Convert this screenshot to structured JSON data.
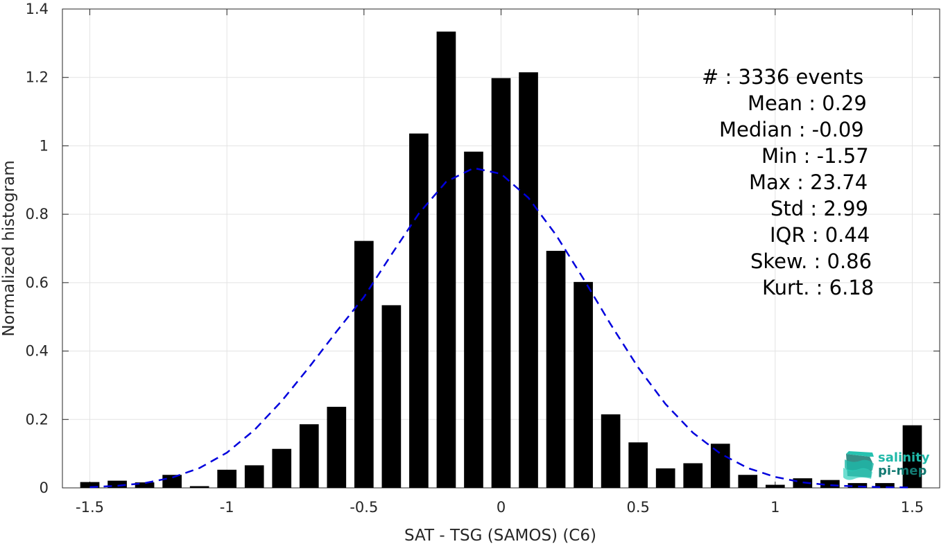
{
  "chart_data": {
    "type": "bar",
    "xlabel": "SAT - TSG (SAMOS) (C6)",
    "ylabel": "Normalized histogram",
    "xlim": [
      -1.6,
      1.6
    ],
    "ylim": [
      0,
      1.4
    ],
    "xticks": [
      -1.5,
      -1,
      -0.5,
      0,
      0.5,
      1,
      1.5
    ],
    "xtick_labels": [
      "-1.5",
      "-1",
      "-0.5",
      "0",
      "0.5",
      "1",
      "1.5"
    ],
    "yticks": [
      0,
      0.2,
      0.4,
      0.6,
      0.8,
      1,
      1.2,
      1.4
    ],
    "ytick_labels": [
      "0",
      "0.2",
      "0.4",
      "0.6",
      "0.8",
      "1",
      "1.2",
      "1.4"
    ],
    "grid": true,
    "bar_color": "#000000",
    "x": [
      -1.5,
      -1.4,
      -1.3,
      -1.2,
      -1.1,
      -1.0,
      -0.9,
      -0.8,
      -0.7,
      -0.6,
      -0.5,
      -0.4,
      -0.3,
      -0.2,
      -0.1,
      0.0,
      0.1,
      0.2,
      0.3,
      0.4,
      0.5,
      0.6,
      0.7,
      0.8,
      0.9,
      1.0,
      1.1,
      1.2,
      1.3,
      1.4,
      1.5
    ],
    "values": [
      0.017,
      0.021,
      0.016,
      0.038,
      0.005,
      0.053,
      0.066,
      0.114,
      0.186,
      0.237,
      0.722,
      0.534,
      1.036,
      1.334,
      0.983,
      1.198,
      1.215,
      0.693,
      0.602,
      0.215,
      0.133,
      0.057,
      0.072,
      0.129,
      0.038,
      0.009,
      0.028,
      0.023,
      0.014,
      0.014,
      0.183
    ],
    "bar_width": 0.07,
    "fit_curve": {
      "style": "dashed",
      "color": "#0000dd",
      "x": [
        -1.5,
        -1.4,
        -1.3,
        -1.2,
        -1.1,
        -1.0,
        -0.9,
        -0.8,
        -0.7,
        -0.6,
        -0.5,
        -0.4,
        -0.3,
        -0.2,
        -0.1,
        0.0,
        0.1,
        0.2,
        0.3,
        0.4,
        0.5,
        0.6,
        0.7,
        0.8,
        0.9,
        1.0,
        1.1,
        1.2,
        1.3,
        1.4,
        1.5
      ],
      "y": [
        0.002,
        0.006,
        0.014,
        0.03,
        0.058,
        0.103,
        0.169,
        0.254,
        0.353,
        0.457,
        0.558,
        0.682,
        0.802,
        0.895,
        0.935,
        0.918,
        0.848,
        0.74,
        0.612,
        0.478,
        0.352,
        0.245,
        0.161,
        0.1,
        0.058,
        0.032,
        0.016,
        0.008,
        0.004,
        0.002,
        0.001
      ]
    }
  },
  "stats": {
    "count": "#  : 3336 events",
    "mean": "Mean : 0.29",
    "median": "Median : -0.09",
    "min": "Min : -1.57",
    "max": "Max : 23.74",
    "std": "Std : 2.99",
    "iqr": "IQR : 0.44",
    "skew": "Skew. : 0.86",
    "kurt": "Kurt. : 6.18"
  },
  "logo": {
    "line1": "salinity",
    "line2": "pi-mep",
    "color1": "#1fb8a8",
    "color2": "#137a72"
  }
}
